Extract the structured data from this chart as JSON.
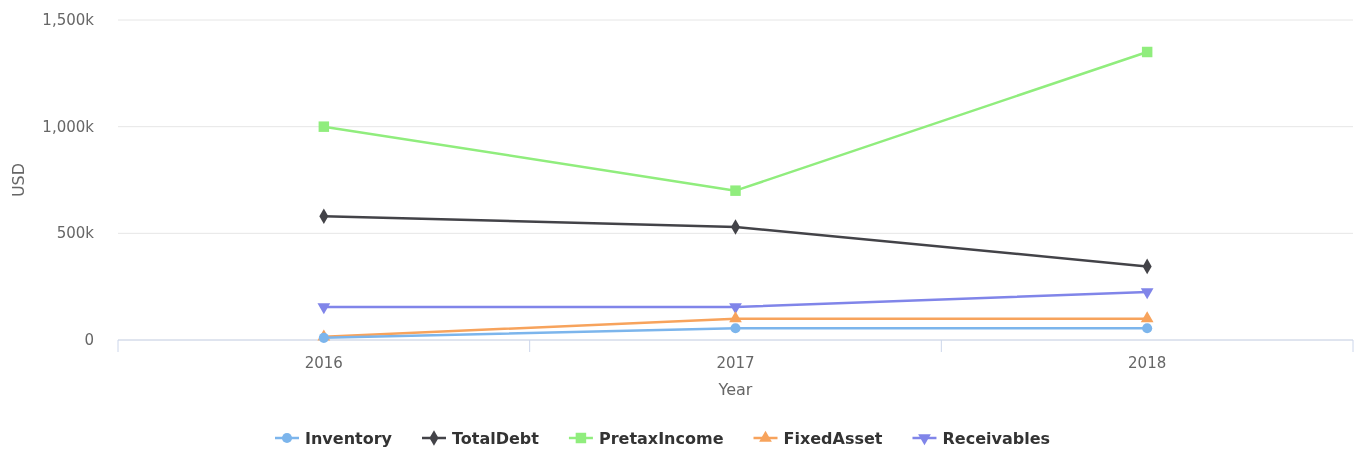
{
  "chart_data": {
    "type": "line",
    "xlabel": "Year",
    "ylabel": "USD",
    "categories": [
      "2016",
      "2017",
      "2018"
    ],
    "ylim": [
      0,
      1500000
    ],
    "yticks": [
      {
        "value": 0,
        "label": "0"
      },
      {
        "value": 500000,
        "label": "500k"
      },
      {
        "value": 1000000,
        "label": "1,000k"
      },
      {
        "value": 1500000,
        "label": "1,500k"
      }
    ],
    "grid": "y",
    "legend": "bottom",
    "series": [
      {
        "name": "Inventory",
        "color": "#7cb5ec",
        "marker": "circle",
        "values": [
          10000,
          55000,
          55000
        ]
      },
      {
        "name": "TotalDebt",
        "color": "#434348",
        "marker": "diamond",
        "values": [
          580000,
          530000,
          345000
        ]
      },
      {
        "name": "PretaxIncome",
        "color": "#90ed7d",
        "marker": "square",
        "values": [
          1000000,
          700000,
          1350000
        ]
      },
      {
        "name": "FixedAsset",
        "color": "#f7a35c",
        "marker": "triangle",
        "values": [
          15000,
          100000,
          100000
        ]
      },
      {
        "name": "Receivables",
        "color": "#8085e9",
        "marker": "triangle-down",
        "values": [
          155000,
          155000,
          225000
        ]
      }
    ]
  }
}
